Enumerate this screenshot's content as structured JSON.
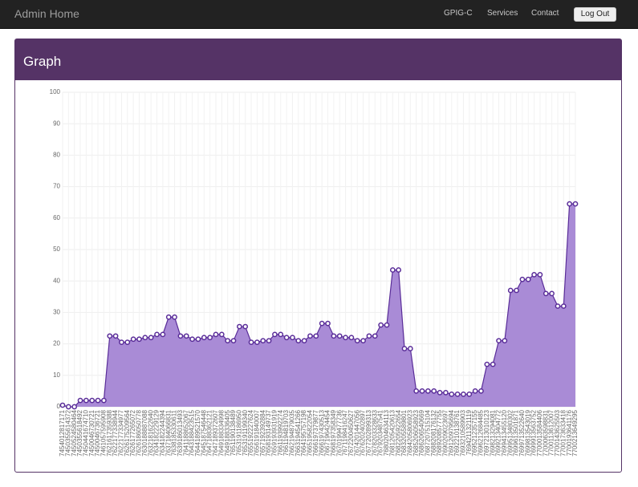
{
  "nav": {
    "brand": "Admin Home",
    "links": [
      "GPIG-C",
      "Services",
      "Contact"
    ],
    "button": "Log Out"
  },
  "panel": {
    "title": "Graph"
  },
  "chart_data": {
    "type": "area",
    "color": "#5a2d99",
    "fill": "#a98bd6",
    "grid": true,
    "ylim": [
      0,
      100
    ],
    "yticks": [
      0,
      10,
      20,
      30,
      40,
      50,
      60,
      70,
      80,
      90,
      100
    ],
    "categories": [
      "7454012817171",
      "7450355614372",
      "7450524580464",
      "7450355618492",
      "7450441674710",
      "7450046730721",
      "7450046736721",
      "7461057595908",
      "7621617359388",
      "7622177338944",
      "7622177334977",
      "7626175209564",
      "7626177265072",
      "7626186050778",
      "7630188887088",
      "7632181622640",
      "7634182229129",
      "7634182244394",
      "7637184066831",
      "7638185330611",
      "7639186013493",
      "7641188652067",
      "7643188423515",
      "7644189521570",
      "7645187546448",
      "7647188362121",
      "7647189372607",
      "7649188334998",
      "7649188336405",
      "7651190138489",
      "7653191186950",
      "7653191199340",
      "7655192227624",
      "7656191840007",
      "7657192392884",
      "7658193149737",
      "7659193931919",
      "7661193992274",
      "7661194819703",
      "7662194879035",
      "7663194541266",
      "7664195757198",
      "7665195822054",
      "7666197379877",
      "7666197430513",
      "7667196424454",
      "7668197358349",
      "7670199477736",
      "7671198416247",
      "7672200450627",
      "7674201447056",
      "7676202402897",
      "7677202899313",
      "7678203328633",
      "7679203487541",
      "7680204634113",
      "7681205420613",
      "7682205922654",
      "7683205589801",
      "7684205806923",
      "7685206058923",
      "7686206540669",
      "7687207515104",
      "7688208176132",
      "7689208577755",
      "7690209023697",
      "7691209795694",
      "7692210138761",
      "7693210589903",
      "7694211321119",
      "7695212357155",
      "7696212684485",
      "7697213010123",
      "7698213294081",
      "7699213404772",
      "7699413455120",
      "7699513480302",
      "7699613501871",
      "7699713522640",
      "7699813543019",
      "7699913563752",
      "7700013584406",
      "7700063598831",
      "7700113612007",
      "7700143625503",
      "7700173633418",
      "7700193641176",
      "7700213649295"
    ],
    "values": [
      0.5,
      0,
      0,
      2,
      2,
      2,
      2,
      2,
      22.5,
      22.5,
      20.5,
      20.5,
      21.5,
      21.5,
      22,
      22,
      23,
      23,
      28.5,
      28.5,
      22.5,
      22.5,
      21.5,
      21.5,
      22,
      22,
      23,
      23,
      21,
      21,
      25.5,
      25.5,
      20.5,
      20.5,
      21,
      21,
      23,
      23,
      22,
      22,
      21,
      21,
      22.5,
      22.5,
      26.5,
      26.5,
      22.5,
      22.5,
      22,
      22,
      21,
      21,
      22.5,
      22.5,
      26,
      26,
      43.5,
      43.5,
      18.5,
      18.5,
      5,
      5,
      5,
      5,
      4.5,
      4.5,
      4,
      4,
      4,
      4,
      5,
      5,
      13.5,
      13.5,
      21,
      21,
      37,
      37,
      40.5,
      40.5,
      42,
      42,
      36,
      36,
      32,
      32,
      64.5,
      64.5
    ]
  }
}
